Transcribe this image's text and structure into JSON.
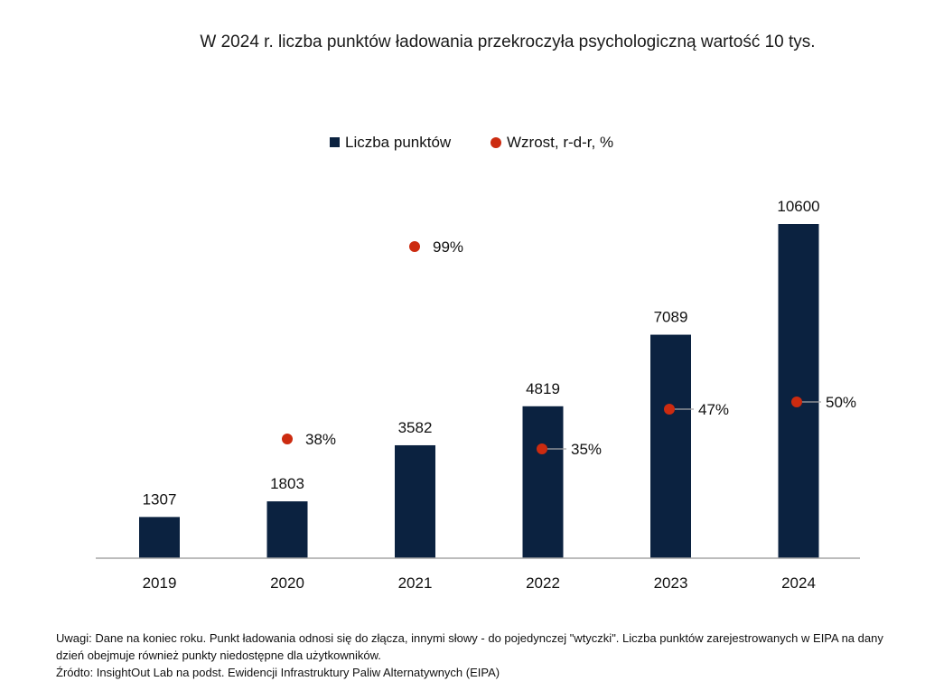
{
  "title": "W 2024 r. liczba punktów ładowania przekroczyła psychologiczną wartość 10 tys.",
  "notes": {
    "remark": "Uwagi: Dane na koniec roku. Punkt ładowania odnosi się do złącza, innymi słowy - do pojedynczej \"wtyczki\". Liczba punktów zarejestrowanych w EIPA na dany dzień obejmuje również punkty niedostępne dla użytkowników.",
    "source": "Źródto: InsightOut Lab na podst. Ewidencji Infrastruktury Paliw Alternatywnych (EIPA)"
  },
  "colors": {
    "bar": "#0b2240",
    "dot": "#cc2b10",
    "axis": "#a6a6a6"
  },
  "chart_data": {
    "type": "bar",
    "title": "W 2024 r. liczba punktów ładowania przekroczyła psychologiczną wartość 10 tys.",
    "categories": [
      "2019",
      "2020",
      "2021",
      "2022",
      "2023",
      "2024"
    ],
    "series": [
      {
        "name": "Liczba punktów",
        "type": "bar",
        "values": [
          1307,
          1803,
          3582,
          4819,
          7089,
          10600
        ],
        "labels": [
          "1307",
          "1803",
          "3582",
          "4819",
          "7089",
          "10600"
        ]
      },
      {
        "name": "Wzrost, r-d-r, %",
        "type": "scatter",
        "values": [
          null,
          38,
          99,
          35,
          47,
          50
        ],
        "labels": [
          "",
          "38%",
          "99%",
          "35%",
          "47%",
          "50%"
        ]
      }
    ],
    "legend_position": "top-center",
    "grid": false
  }
}
